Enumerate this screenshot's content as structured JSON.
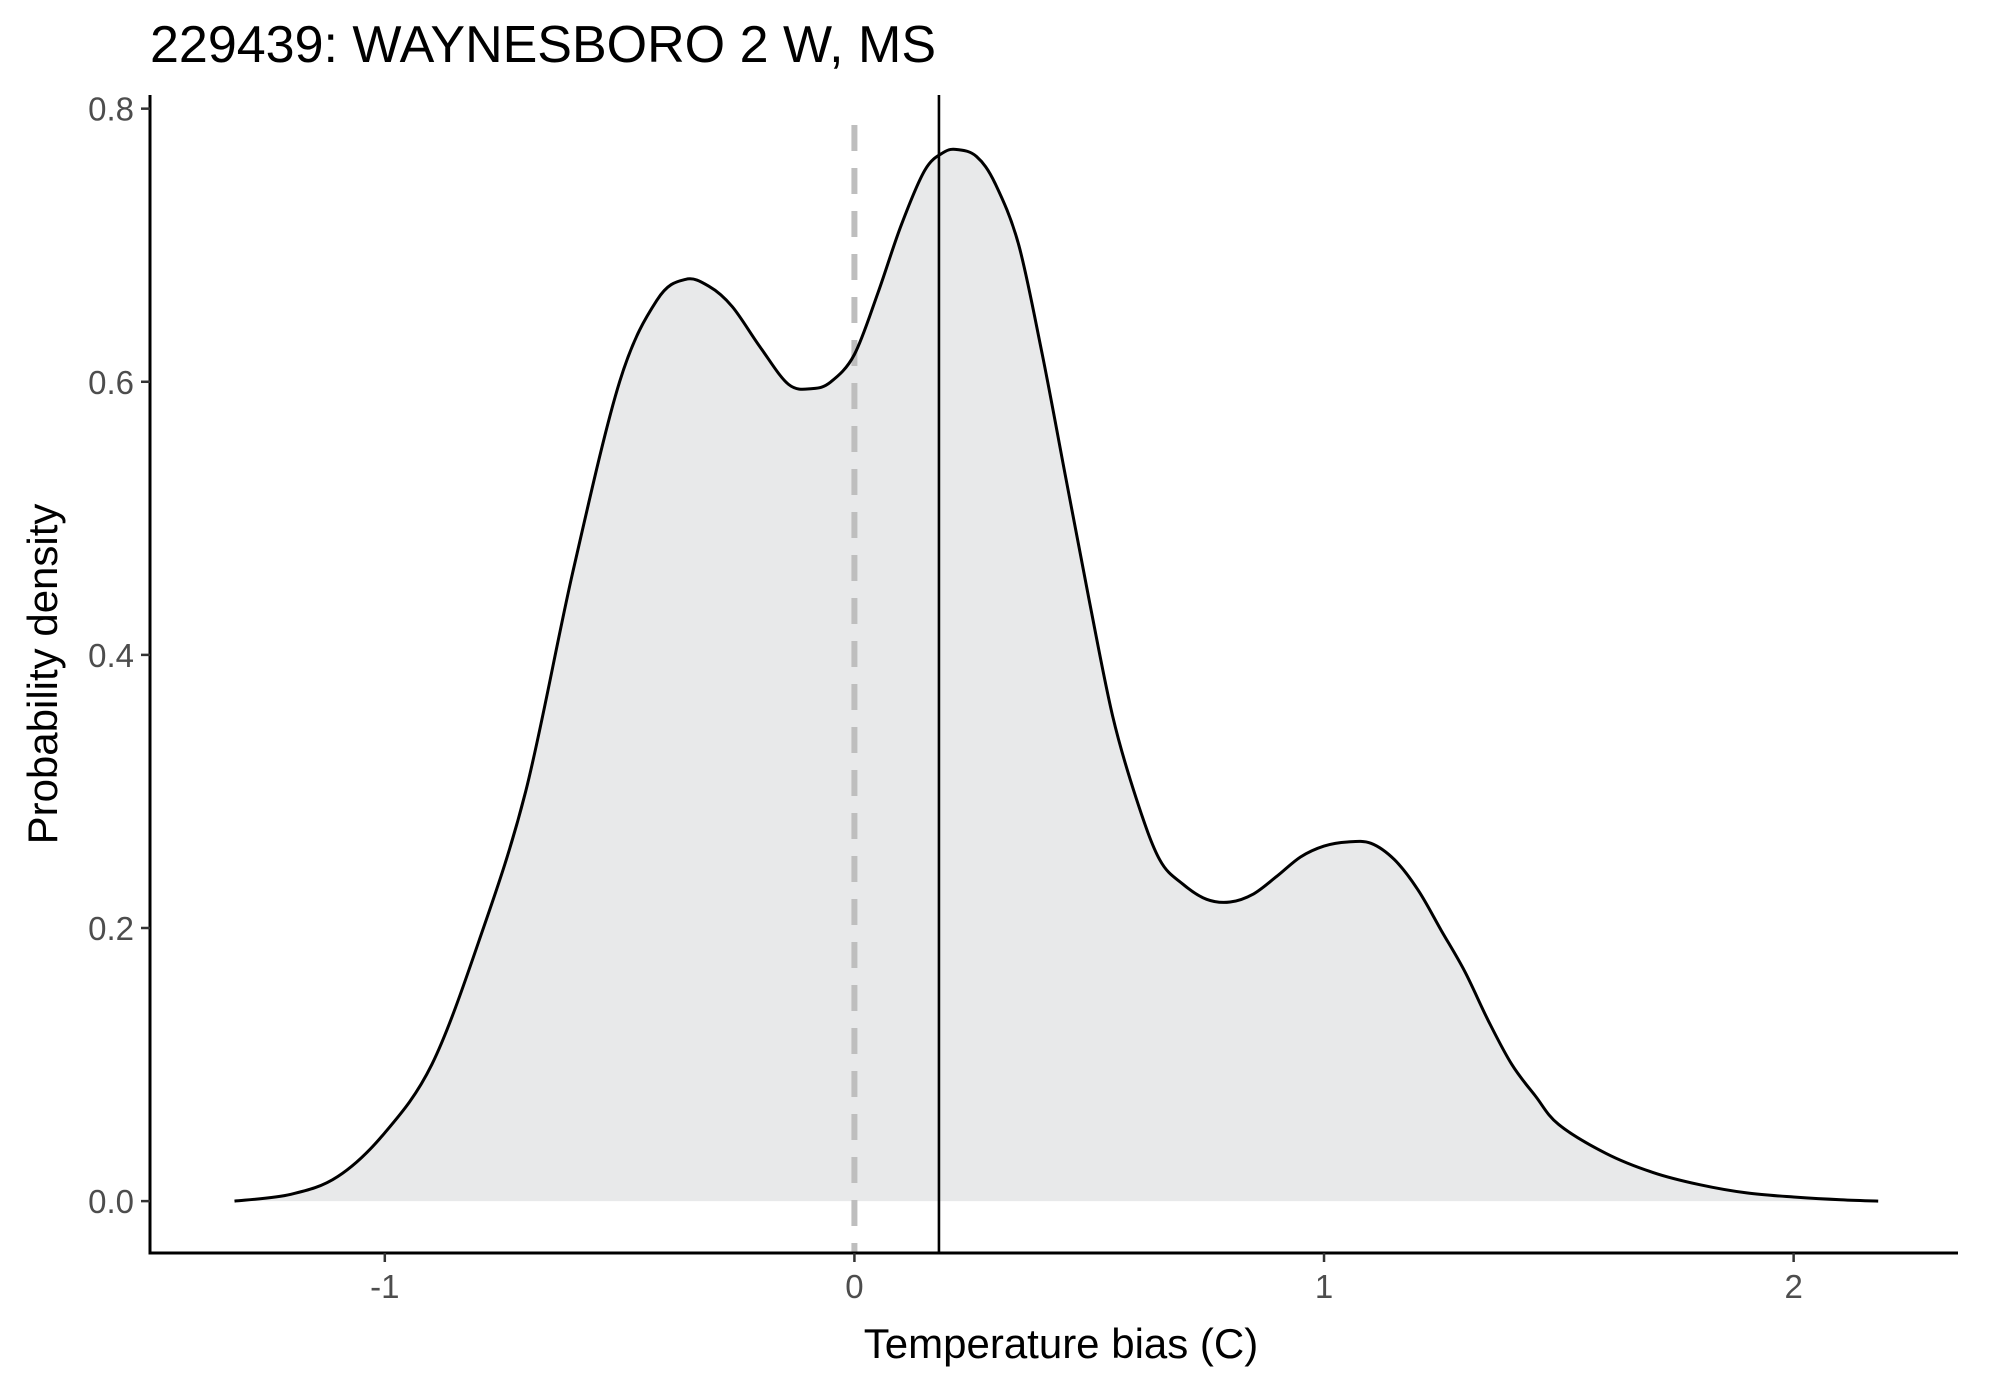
{
  "chart_data": {
    "type": "area",
    "title": "229439: WAYNESBORO 2 W, MS",
    "xlabel": "Temperature bias (C)",
    "ylabel": "Probability density",
    "xlim": [
      -1.5,
      2.35
    ],
    "ylim": [
      -0.038,
      0.81
    ],
    "xticks": [
      -1,
      0,
      1,
      2
    ],
    "xtick_labels": [
      "-1",
      "0",
      "1",
      "2"
    ],
    "yticks": [
      0.0,
      0.2,
      0.4,
      0.6,
      0.8
    ],
    "ytick_labels": [
      "0.0",
      "0.2",
      "0.4",
      "0.6",
      "0.8"
    ],
    "grid": false,
    "legend": "none",
    "series": [
      {
        "x": [
          -1.32,
          -1.2,
          -1.1,
          -1.0,
          -0.9,
          -0.8,
          -0.7,
          -0.6,
          -0.5,
          -0.42,
          -0.36,
          -0.31,
          -0.26,
          -0.2,
          -0.14,
          -0.09,
          -0.05,
          0.0,
          0.05,
          0.1,
          0.15,
          0.19,
          0.22,
          0.26,
          0.3,
          0.35,
          0.4,
          0.45,
          0.5,
          0.55,
          0.6,
          0.65,
          0.7,
          0.75,
          0.8,
          0.85,
          0.9,
          0.95,
          1.0,
          1.05,
          1.1,
          1.15,
          1.2,
          1.25,
          1.3,
          1.35,
          1.4,
          1.45,
          1.5,
          1.6,
          1.7,
          1.8,
          1.9,
          2.0,
          2.1,
          2.18
        ],
        "y": [
          0.0,
          0.005,
          0.018,
          0.05,
          0.1,
          0.19,
          0.3,
          0.46,
          0.6,
          0.66,
          0.675,
          0.67,
          0.655,
          0.625,
          0.598,
          0.595,
          0.6,
          0.62,
          0.665,
          0.715,
          0.755,
          0.768,
          0.77,
          0.765,
          0.745,
          0.7,
          0.62,
          0.53,
          0.44,
          0.355,
          0.295,
          0.25,
          0.232,
          0.221,
          0.219,
          0.225,
          0.238,
          0.252,
          0.26,
          0.263,
          0.262,
          0.25,
          0.228,
          0.198,
          0.168,
          0.132,
          0.1,
          0.077,
          0.056,
          0.035,
          0.021,
          0.012,
          0.006,
          0.003,
          0.001,
          0.0
        ]
      }
    ],
    "reference_lines": [
      {
        "orientation": "vertical",
        "x": 0,
        "style": "dashed",
        "color": "#bebebe"
      },
      {
        "orientation": "vertical",
        "x": 0.18,
        "style": "solid",
        "color": "#000000"
      }
    ],
    "colors": {
      "fill": "#e8e9ea",
      "curve": "#000000",
      "axis": "#000000",
      "tick_text": "#4d4d4d"
    }
  }
}
